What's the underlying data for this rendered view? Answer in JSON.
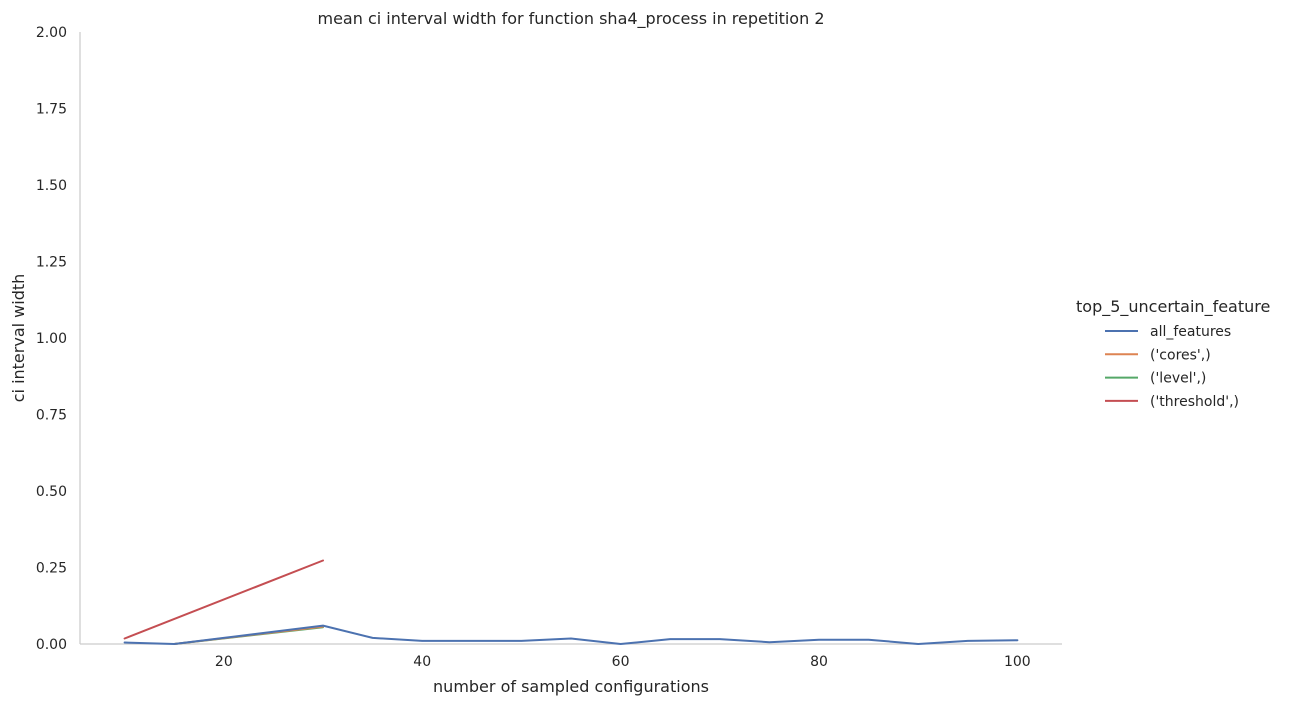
{
  "chart_data": {
    "type": "line",
    "title": "mean ci interval width for function sha4_process in repetition 2",
    "xlabel": "number of sampled configurations",
    "ylabel": "ci interval width",
    "xlim": [
      5.5,
      104.5
    ],
    "ylim": [
      0,
      2.0
    ],
    "xticks": [
      20,
      40,
      60,
      80,
      100
    ],
    "xtick_labels": [
      "20",
      "40",
      "60",
      "80",
      "100"
    ],
    "yticks": [
      0,
      0.25,
      0.5,
      0.75,
      1.0,
      1.25,
      1.5,
      1.75,
      2.0
    ],
    "ytick_labels": [
      "0.00",
      "0.25",
      "0.50",
      "0.75",
      "1.00",
      "1.25",
      "1.50",
      "1.75",
      "2.00"
    ],
    "grid": false,
    "legend": {
      "title": "top_5_uncertain_feature",
      "placement": "right"
    },
    "series": [
      {
        "name": "all_features",
        "color": "#4c72b0",
        "x": [
          10,
          15,
          20,
          25,
          30,
          35,
          40,
          45,
          50,
          55,
          60,
          65,
          70,
          75,
          80,
          85,
          90,
          95,
          100
        ],
        "y": [
          0.005,
          0.0,
          0.02,
          0.04,
          0.06,
          0.02,
          0.01,
          0.01,
          0.01,
          0.018,
          0.0,
          0.016,
          0.016,
          0.006,
          0.014,
          0.014,
          0.0,
          0.01,
          0.012
        ]
      },
      {
        "name": "('cores',)",
        "color": "#dd8452",
        "x": [
          15,
          30
        ],
        "y": [
          0.0,
          0.057
        ]
      },
      {
        "name": "('level',)",
        "color": "#55a868",
        "x": [
          15,
          30
        ],
        "y": [
          0.0,
          0.055
        ]
      },
      {
        "name": "('threshold',)",
        "color": "#c44e52",
        "x": [
          10,
          30
        ],
        "y": [
          0.018,
          0.273
        ]
      }
    ]
  }
}
